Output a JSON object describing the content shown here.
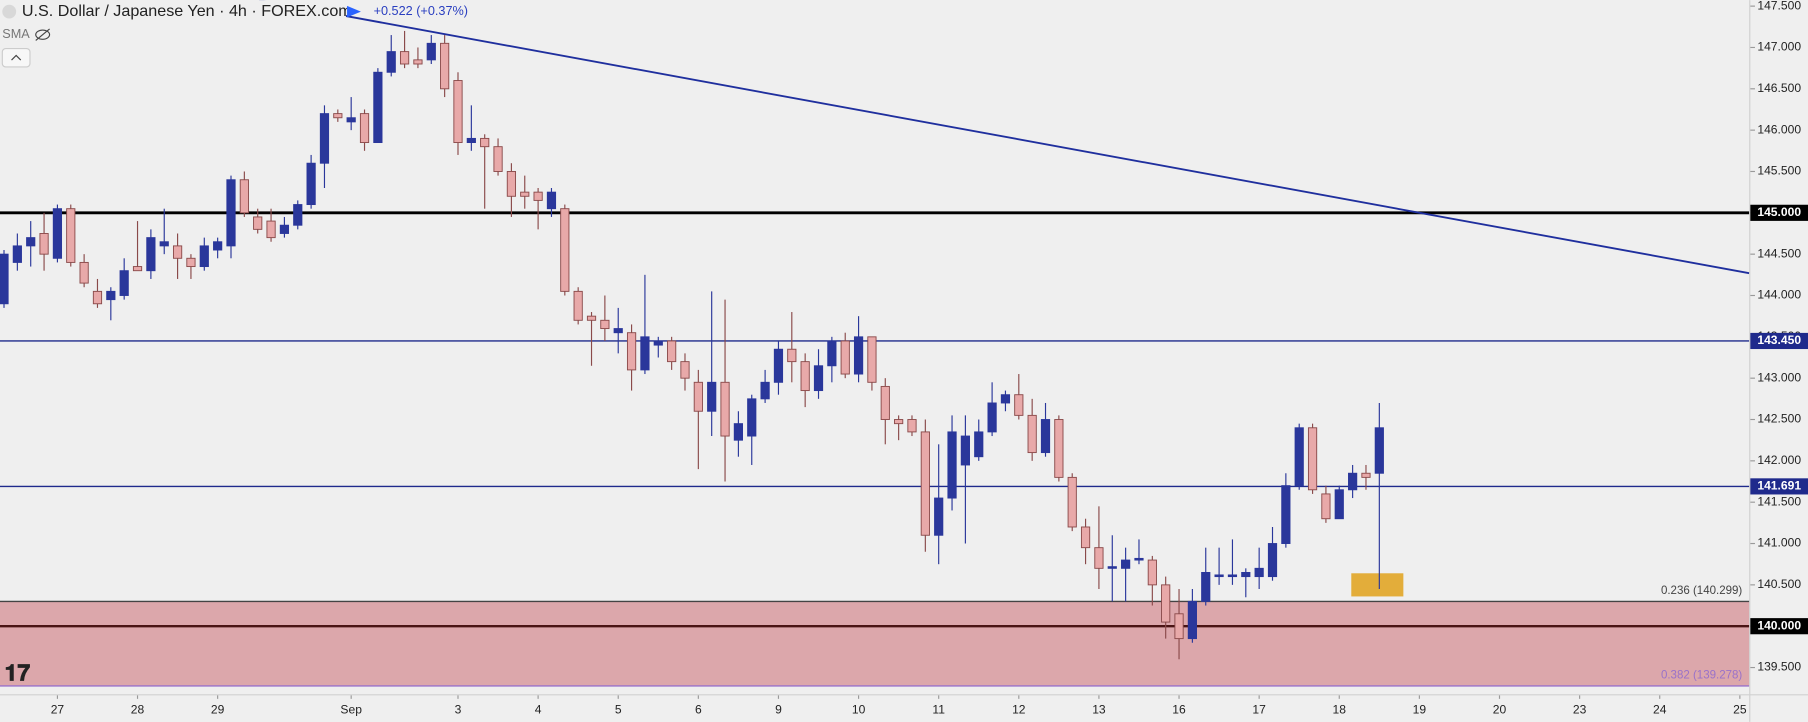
{
  "chart_data": {
    "type": "candlestick",
    "title": "U.S. Dollar / Japanese Yen · 4h · FOREX.com",
    "change": "+0.522 (+0.37%)",
    "indicator": "SMA",
    "up_color": "#2a379b",
    "down_color": "#e8a9a9",
    "x": [
      0,
      1,
      2,
      3,
      4,
      5,
      6,
      7,
      8,
      9,
      10,
      11,
      12,
      13,
      14,
      15,
      16,
      17,
      18,
      19,
      20,
      21,
      22,
      23,
      24,
      25,
      26,
      27,
      28,
      29,
      30,
      31,
      32,
      33,
      34,
      35,
      36,
      37,
      38,
      39,
      40,
      41,
      42,
      43,
      44,
      45,
      46,
      47,
      48,
      49,
      50,
      51,
      52,
      53,
      54,
      55,
      56,
      57,
      58,
      59,
      60,
      61,
      62,
      63,
      64,
      65,
      66,
      67,
      68,
      69,
      70,
      71,
      72,
      73,
      74,
      75,
      76,
      77,
      78,
      79,
      80,
      81,
      82,
      83,
      84,
      85,
      86,
      87,
      88,
      89,
      90,
      91,
      92,
      93,
      94,
      95,
      96,
      97,
      98,
      99,
      100,
      101,
      102,
      103
    ],
    "open": [
      143.9,
      144.4,
      144.6,
      144.75,
      144.45,
      145.05,
      144.4,
      144.05,
      143.95,
      144.0,
      144.35,
      144.3,
      144.6,
      144.6,
      144.45,
      144.35,
      144.55,
      144.6,
      145.4,
      144.95,
      144.9,
      144.75,
      144.85,
      145.1,
      145.6,
      146.2,
      146.1,
      146.2,
      145.85,
      146.7,
      146.95,
      146.85,
      146.85,
      147.05,
      146.6,
      145.85,
      145.9,
      145.8,
      145.5,
      145.25,
      145.25,
      145.05,
      145.05,
      144.05,
      143.75,
      143.7,
      143.55,
      143.55,
      143.1,
      143.4,
      143.45,
      143.2,
      142.95,
      142.6,
      142.95,
      142.25,
      142.3,
      142.75,
      142.95,
      143.35,
      143.2,
      142.85,
      143.15,
      143.45,
      143.05,
      143.5,
      142.9,
      142.5,
      142.5,
      142.35,
      141.1,
      141.55,
      141.95,
      142.05,
      142.35,
      142.7,
      142.8,
      142.55,
      142.1,
      142.5,
      141.8,
      141.2,
      140.95,
      140.7,
      140.7,
      140.8,
      140.8,
      140.5,
      140.15,
      139.85,
      140.3,
      140.6,
      140.6,
      140.6,
      140.6,
      140.6,
      141.0,
      141.7,
      142.4,
      141.6,
      141.3,
      141.65,
      141.85,
      141.85
    ],
    "high": [
      144.55,
      144.75,
      144.9,
      145.0,
      145.1,
      145.1,
      144.5,
      144.2,
      144.1,
      144.45,
      144.9,
      144.8,
      145.05,
      144.75,
      144.5,
      144.7,
      144.7,
      145.45,
      145.5,
      145.05,
      145.05,
      144.95,
      145.15,
      145.7,
      146.3,
      146.25,
      146.4,
      146.25,
      146.75,
      147.15,
      147.2,
      147.0,
      147.15,
      147.15,
      146.7,
      146.3,
      145.95,
      145.9,
      145.6,
      145.45,
      145.3,
      145.3,
      145.1,
      144.1,
      143.8,
      144.0,
      143.85,
      143.65,
      144.25,
      143.5,
      143.5,
      143.3,
      143.1,
      144.05,
      143.95,
      142.6,
      142.8,
      143.1,
      143.45,
      143.8,
      143.3,
      143.35,
      143.5,
      143.55,
      143.75,
      143.5,
      143.0,
      142.55,
      142.55,
      142.5,
      142.2,
      142.55,
      142.55,
      142.5,
      142.95,
      142.85,
      143.05,
      142.75,
      142.7,
      142.55,
      141.85,
      141.3,
      141.45,
      141.1,
      140.95,
      141.05,
      140.85,
      140.6,
      140.45,
      140.45,
      140.95,
      140.95,
      141.05,
      140.7,
      140.95,
      141.2,
      141.85,
      142.45,
      142.45,
      141.7,
      141.7,
      141.95,
      141.95,
      142.7
    ],
    "low": [
      143.85,
      144.3,
      144.35,
      144.3,
      144.4,
      144.35,
      144.1,
      143.85,
      143.7,
      143.95,
      144.3,
      144.2,
      144.5,
      144.2,
      144.2,
      144.3,
      144.45,
      144.45,
      144.95,
      144.75,
      144.65,
      144.7,
      144.8,
      145.05,
      145.3,
      146.1,
      146.0,
      145.75,
      145.85,
      146.65,
      146.75,
      146.75,
      146.8,
      146.4,
      145.7,
      145.75,
      145.05,
      145.45,
      144.95,
      145.05,
      144.8,
      144.95,
      144.0,
      143.65,
      143.15,
      143.45,
      143.3,
      142.85,
      143.05,
      143.25,
      143.1,
      142.85,
      141.9,
      142.3,
      141.75,
      142.05,
      141.95,
      142.7,
      142.8,
      142.95,
      142.65,
      142.75,
      142.95,
      143.0,
      142.95,
      142.85,
      142.2,
      142.25,
      142.3,
      140.9,
      140.75,
      141.4,
      141.0,
      142.0,
      142.3,
      142.6,
      142.5,
      142.0,
      142.05,
      141.75,
      141.15,
      140.75,
      140.45,
      140.3,
      140.3,
      140.75,
      140.25,
      139.85,
      139.6,
      139.8,
      140.25,
      140.5,
      140.5,
      140.35,
      140.45,
      140.55,
      140.95,
      141.65,
      141.6,
      141.25,
      141.3,
      141.55,
      141.65,
      140.45
    ],
    "close": [
      144.5,
      144.6,
      144.7,
      144.5,
      145.05,
      144.4,
      144.15,
      143.9,
      144.05,
      144.3,
      144.3,
      144.7,
      144.65,
      144.45,
      144.35,
      144.6,
      144.65,
      145.4,
      145.0,
      144.8,
      144.7,
      144.85,
      145.1,
      145.6,
      146.2,
      146.15,
      146.15,
      145.85,
      146.7,
      146.95,
      146.8,
      146.8,
      147.05,
      146.5,
      145.85,
      145.9,
      145.8,
      145.5,
      145.2,
      145.2,
      145.15,
      145.25,
      144.05,
      143.7,
      143.7,
      143.6,
      143.6,
      143.1,
      143.5,
      143.45,
      143.2,
      143.0,
      142.6,
      142.95,
      142.3,
      142.45,
      142.75,
      142.95,
      143.35,
      143.2,
      142.85,
      143.15,
      143.45,
      143.05,
      143.5,
      142.95,
      142.5,
      142.45,
      142.35,
      141.1,
      141.55,
      142.35,
      142.3,
      142.35,
      142.7,
      142.8,
      142.55,
      142.1,
      142.5,
      141.8,
      141.2,
      140.95,
      140.7,
      140.72,
      140.8,
      140.82,
      140.5,
      140.05,
      139.85,
      140.3,
      140.65,
      140.62,
      140.62,
      140.65,
      140.7,
      141.0,
      141.7,
      142.4,
      141.65,
      141.3,
      141.65,
      141.85,
      141.8,
      142.4
    ],
    "xlim": [
      -0.3,
      130.7
    ],
    "ylim": [
      139.205,
      147.573
    ],
    "xticks": [
      {
        "value": 4,
        "label": "27"
      },
      {
        "value": 10,
        "label": "28"
      },
      {
        "value": 16,
        "label": "29"
      },
      {
        "value": 26,
        "label": "Sep"
      },
      {
        "value": 34,
        "label": "3"
      },
      {
        "value": 40,
        "label": "4"
      },
      {
        "value": 46,
        "label": "5"
      },
      {
        "value": 52,
        "label": "6"
      },
      {
        "value": 58,
        "label": "9"
      },
      {
        "value": 64,
        "label": "10"
      },
      {
        "value": 70,
        "label": "11"
      },
      {
        "value": 76,
        "label": "12"
      },
      {
        "value": 82,
        "label": "13"
      },
      {
        "value": 88,
        "label": "16"
      },
      {
        "value": 94,
        "label": "17"
      },
      {
        "value": 100,
        "label": "18"
      },
      {
        "value": 106,
        "label": "19"
      },
      {
        "value": 112,
        "label": "20"
      },
      {
        "value": 118,
        "label": "23"
      },
      {
        "value": 124,
        "label": "24"
      },
      {
        "value": 130,
        "label": "25"
      }
    ],
    "yticks": [
      {
        "value": 147.5,
        "label": "147.500"
      },
      {
        "value": 147,
        "label": "147.000"
      },
      {
        "value": 146.5,
        "label": "146.500"
      },
      {
        "value": 146,
        "label": "146.000"
      },
      {
        "value": 145.5,
        "label": "145.500"
      },
      {
        "value": 145,
        "label": "145.000"
      },
      {
        "value": 144.5,
        "label": "144.500"
      },
      {
        "value": 144,
        "label": "144.000"
      },
      {
        "value": 143.5,
        "label": "143.500"
      },
      {
        "value": 143,
        "label": "143.000"
      },
      {
        "value": 142.5,
        "label": "142.500"
      },
      {
        "value": 142,
        "label": "142.000"
      },
      {
        "value": 141.5,
        "label": "141.500"
      },
      {
        "value": 141,
        "label": "141.000"
      },
      {
        "value": 140.5,
        "label": "140.500"
      },
      {
        "value": 140,
        "label": "140.000"
      },
      {
        "value": 139.5,
        "label": "139.500"
      }
    ],
    "levels": [
      {
        "value": 145,
        "label": "145.000",
        "color": "#000000",
        "width": 2.5
      },
      {
        "value": 143.45,
        "label": "143.450",
        "color": "#1f2a8c",
        "width": 1.2
      },
      {
        "value": 141.691,
        "label": "141.691",
        "color": "#1f2a8c",
        "width": 1.2
      },
      {
        "value": 140,
        "label": "140.000",
        "color": "#4a1414",
        "width": 2
      }
    ],
    "fib": [
      {
        "value": 140.299,
        "label": "0.236 (140.299)",
        "color": "#444444"
      },
      {
        "value": 139.278,
        "label": "0.382 (139.278)",
        "color": "#9a72c9"
      }
    ],
    "fib_fill": "#dca7ab",
    "trendline": {
      "x": [
        19.1,
        130.7
      ],
      "y": [
        147.573,
        144.27
      ],
      "color": "#1f2f9e"
    },
    "highlight": {
      "x": [
        100.9,
        104.8
      ],
      "y": [
        140.36,
        140.64
      ],
      "color": "#e3ad3a"
    }
  }
}
